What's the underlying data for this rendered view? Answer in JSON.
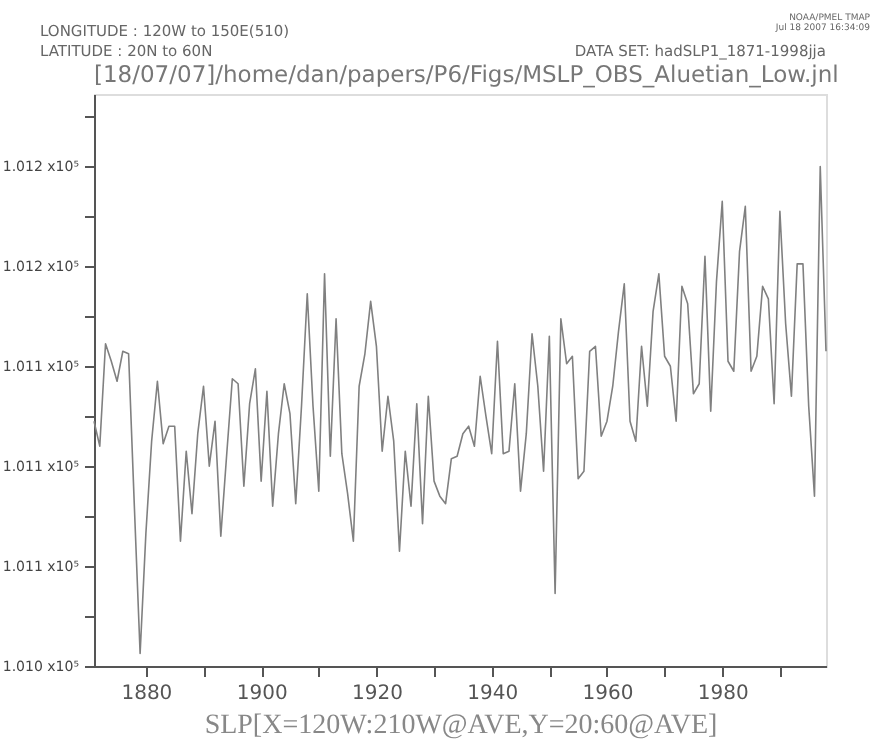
{
  "chart_data": {
    "type": "line",
    "title": "[18/07/07]/home/dan/papers/P6/Figs/MSLP_OBS_Aluetian_Low.jnl",
    "xlabel": "SLP[X=120W:210W@AVE,Y=20:60@AVE]",
    "annotations": [
      "LONGITUDE : 120W to 150E(510)",
      "LATITUDE : 20N to 60N",
      "DATA SET: hadSLP1_1871-1998jja",
      "NOAA/PMEL TMAP",
      "Jul 18 2007 16:34:09"
    ],
    "x": [
      1871,
      1872,
      1873,
      1874,
      1875,
      1876,
      1877,
      1878,
      1879,
      1880,
      1881,
      1882,
      1883,
      1884,
      1885,
      1886,
      1887,
      1888,
      1889,
      1890,
      1891,
      1892,
      1893,
      1894,
      1895,
      1896,
      1897,
      1898,
      1899,
      1900,
      1901,
      1902,
      1903,
      1904,
      1905,
      1906,
      1907,
      1908,
      1909,
      1910,
      1911,
      1912,
      1913,
      1914,
      1915,
      1916,
      1917,
      1918,
      1919,
      1920,
      1921,
      1922,
      1923,
      1924,
      1925,
      1926,
      1927,
      1928,
      1929,
      1930,
      1931,
      1932,
      1933,
      1934,
      1935,
      1936,
      1937,
      1938,
      1939,
      1940,
      1941,
      1942,
      1943,
      1944,
      1945,
      1946,
      1947,
      1948,
      1949,
      1950,
      1951,
      1952,
      1953,
      1954,
      1955,
      1956,
      1957,
      1958,
      1959,
      1960,
      1961,
      1962,
      1963,
      1964,
      1965,
      1966,
      1967,
      1968,
      1969,
      1970,
      1971,
      1972,
      1973,
      1974,
      1975,
      1976,
      1977,
      1978,
      1979,
      1980,
      1981,
      1982,
      1983,
      1984,
      1985,
      1986,
      1987,
      1988,
      1989,
      1990,
      1991,
      1992,
      1993,
      1994,
      1995,
      1996,
      1997,
      1998
    ],
    "series": [
      {
        "color": "#808080",
        "values": [
          101118,
          101108,
          101149,
          101142,
          101134,
          101146,
          101145,
          101084,
          101025,
          101073,
          101110,
          101134,
          101109,
          101116,
          101116,
          101070,
          101106,
          101081,
          101113,
          101132,
          101100,
          101118,
          101072,
          101104,
          101135,
          101133,
          101092,
          101125,
          101139,
          101094,
          101130,
          101084,
          101113,
          101133,
          101121,
          101085,
          101124,
          101169,
          101124,
          101090,
          101177,
          101104,
          101159,
          101105,
          101089,
          101070,
          101132,
          101145,
          101166,
          101148,
          101106,
          101128,
          101110,
          101066,
          101106,
          101084,
          101125,
          101077,
          101128,
          101094,
          101088,
          101085,
          101103,
          101104,
          101113,
          101116,
          101108,
          101136,
          101120,
          101105,
          101150,
          101105,
          101106,
          101133,
          101090,
          101113,
          101153,
          101132,
          101098,
          101152,
          101049,
          101159,
          101141,
          101144,
          101095,
          101098,
          101146,
          101148,
          101112,
          101118,
          101132,
          101154,
          101173,
          101118,
          101110,
          101148,
          101124,
          101162,
          101177,
          101144,
          101140,
          101118,
          101172,
          101165,
          101129,
          101133,
          101184,
          101122,
          101174,
          101206,
          101142,
          101138,
          101186,
          101204,
          101138,
          101144,
          101172,
          101167,
          101125,
          101202,
          101157,
          101128,
          101181,
          101181,
          101124,
          101088,
          101220,
          101146
        ]
      }
    ],
    "xlim": [
      1871,
      1998
    ],
    "xticks": [
      1880,
      {
        "value": 1890,
        "label": null
      },
      1900,
      {
        "value": 1910,
        "label": null
      },
      1920,
      {
        "value": 1930,
        "label": null
      },
      1940,
      {
        "value": 1950,
        "label": null
      },
      1960,
      {
        "value": 1970,
        "label": null
      },
      1980,
      {
        "value": 1990,
        "label": null
      }
    ],
    "ylim": [
      101020,
      101249
    ],
    "yticks": [
      {
        "value": 101020,
        "label": "1.010 x10⁵"
      },
      {
        "value": 101040,
        "label": null
      },
      {
        "value": 101060,
        "label": "1.011 x10⁵"
      },
      {
        "value": 101080,
        "label": null
      },
      {
        "value": 101100,
        "label": "1.011 x10⁵"
      },
      {
        "value": 101120,
        "label": null
      },
      {
        "value": 101140,
        "label": "1.011 x10⁵"
      },
      {
        "value": 101160,
        "label": null
      },
      {
        "value": 101180,
        "label": "1.012 x10⁵"
      },
      {
        "value": 101200,
        "label": null
      },
      {
        "value": 101220,
        "label": "1.012 x10⁵"
      },
      {
        "value": 101240,
        "label": null
      }
    ],
    "grid": false
  }
}
